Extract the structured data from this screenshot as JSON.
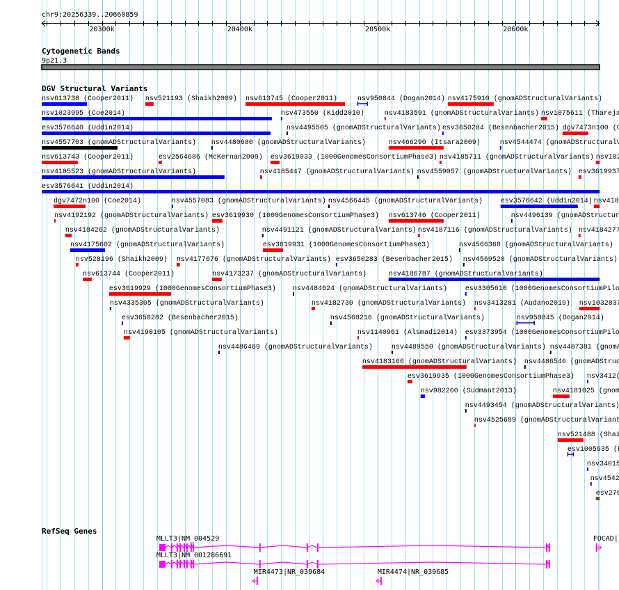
{
  "region": {
    "label": "chr9:20256339..20660859",
    "chrom": "chr9",
    "start": 20256339,
    "end": 20660859
  },
  "ruler": {
    "minor_tick_kb": 10,
    "major_ticks": [
      {
        "kb": 20300,
        "label": "20300k"
      },
      {
        "kb": 20400,
        "label": "20400k"
      },
      {
        "kb": 20500,
        "label": "20500k"
      },
      {
        "kb": 20600,
        "label": "20600k"
      }
    ]
  },
  "grid": {
    "interval_kb": 10,
    "color": "#a6e3ee",
    "major_color": "#88c4ec"
  },
  "colors": {
    "blue": "#0000ff",
    "red": "#ff0000",
    "black": "#000000",
    "brown": "#8b4513",
    "gene": "#ff00ff",
    "band": "#808080"
  },
  "tracks": {
    "cytoband": {
      "title": "Cytogenetic Bands",
      "band_label": "9p21.3"
    },
    "dgv": {
      "title": "DGV Structural Variants",
      "rows": [
        [
          {
            "l": "nsv613738 (Cooper2011)",
            "s": 20256.3,
            "e": 20289.1,
            "c": "blue"
          },
          {
            "l": "nsv521193 (Shaikh2009)",
            "s": 20331.4,
            "e": 20337.5,
            "c": "red"
          },
          {
            "l": "nsv613745 (Cooper2011)",
            "s": 20404.1,
            "e": 20476.2,
            "c": "red"
          },
          {
            "l": "nsv950844 (Dogan2014)",
            "s": 20485.3,
            "e": 20492.8,
            "c": "blue",
            "t": "interval"
          },
          {
            "l": "nsv4175910 (gnomADStructuralVariants)",
            "s": 20550.8,
            "e": 20584.1,
            "c": "red"
          }
        ],
        [
          {
            "l": "nsv1023995 (Coe2014)",
            "s": 20256.3,
            "e": 20423.2,
            "c": "blue"
          },
          {
            "l": "nsv473550 (Kidd2010)",
            "s": 20429.8,
            "e": 20430.8,
            "c": "blue"
          },
          {
            "l": "nsv4183591 (gnomADStructuralVariants)",
            "s": 20504.9,
            "e": 20505.9,
            "c": "red"
          },
          {
            "l": "nsv1075611 (Thareja",
            "s": 20618.4,
            "e": 20622.9,
            "c": "red"
          }
        ],
        [
          {
            "l": "esv3576640 (Uddin2014)",
            "s": 20256.3,
            "e": 20422.2,
            "c": "blue"
          },
          {
            "l": "nsv4495505 (gnomADStructuralVariants)",
            "s": 20433.8,
            "e": 20434.3,
            "c": "black"
          },
          {
            "l": "esv3650284 (Besenbacher2015)",
            "s": 20546.8,
            "e": 20547.8,
            "c": "blue"
          },
          {
            "l": "dgv7473n100 (Coe2014)",
            "s": 20634.0,
            "e": 20652.7,
            "c": "red"
          }
        ],
        [
          {
            "l": "nsv4557703 (gnomADStructuralVariants)",
            "s": 20256.3,
            "e": 20311.3,
            "c": "black"
          },
          {
            "l": "nsv4480680 (gnomADStructuralVariants)",
            "s": 20379.3,
            "e": 20380.3,
            "c": "black"
          },
          {
            "l": "nsv466290 (Itsara2009)",
            "s": 20507.9,
            "e": 20547.8,
            "c": "red"
          },
          {
            "l": "nsv4544474 (gnomADStructuralVariants)",
            "s": 20588.6,
            "e": 20589.6,
            "c": "blue"
          }
        ],
        [
          {
            "l": "nsv613743 (Cooper2011)",
            "s": 20256.3,
            "e": 20282.5,
            "c": "red"
          },
          {
            "l": "esv2564686 (McKernan2009)",
            "s": 20341.0,
            "e": 20343.5,
            "c": "red"
          },
          {
            "l": "esv3619933 (1000GenomesConsortiumPhase3)",
            "s": 20422.2,
            "e": 20428.8,
            "c": "red"
          },
          {
            "l": "nsv4185711 (gnomADStructuralVariants)",
            "s": 20544.8,
            "e": 20546.3,
            "c": "red"
          },
          {
            "l": "nsv102",
            "s": 20658.2,
            "e": 20660.9,
            "c": "red"
          }
        ],
        [
          {
            "l": "nsv4185523 (gnomADStructuralVariants)",
            "s": 20256.3,
            "e": 20388.9,
            "c": "blue"
          },
          {
            "l": "nsv4185447 (gnomADStructuralVariants)",
            "s": 20414.6,
            "e": 20416.1,
            "c": "red"
          },
          {
            "l": "nsv4559057 (gnomADStructuralVariants)",
            "s": 20528.6,
            "e": 20529.6,
            "c": "black"
          },
          {
            "l": "esv3619937",
            "s": 20645.6,
            "e": 20647.6,
            "c": "red"
          }
        ],
        [
          {
            "l": "esv3576641 (Uddin2014)",
            "s": 20256.3,
            "e": 20660.9,
            "c": "blue"
          }
        ],
        [
          {
            "l": "dgv7472n100 (Coe2014)",
            "s": 20264.9,
            "e": 20288.1,
            "c": "red"
          },
          {
            "l": "nsv4557083 (gnomADStructuralVariants)",
            "s": 20350.6,
            "e": 20351.6,
            "c": "blue"
          },
          {
            "l": "nsv4566445 (gnomADStructuralVariants)",
            "s": 20464.1,
            "e": 20465.1,
            "c": "black"
          },
          {
            "l": "esv3576642 (Uddin2014)",
            "s": 20589.1,
            "e": 20645.1,
            "c": "blue"
          },
          {
            "l": "nsv418",
            "s": 20656.7,
            "e": 20660.9,
            "c": "red"
          }
        ],
        [
          {
            "l": "nsv4192192 (gnomADStructuralVariants)",
            "s": 20265.4,
            "e": 20266.4,
            "c": "red"
          },
          {
            "l": "esv3619930 (1000GenomesConsortiumPhase3)",
            "s": 20379.9,
            "e": 20387.4,
            "c": "red"
          },
          {
            "l": "nsv613746 (Cooper2011)",
            "s": 20507.9,
            "e": 20547.8,
            "c": "red"
          },
          {
            "l": "nsv4496139 (gnomADStructuralVariants)",
            "s": 20596.7,
            "e": 20597.7,
            "c": "black"
          }
        ],
        [
          {
            "l": "nsv4184262 (gnomADStructuralVariants)",
            "s": 20273.4,
            "e": 20278.0,
            "c": "red"
          },
          {
            "l": "nsv4491121 (gnomADStructuralVariants)",
            "s": 20416.1,
            "e": 20417.1,
            "c": "black"
          },
          {
            "l": "nsv4187116 (gnomADStructuralVariants)",
            "s": 20529.1,
            "e": 20530.6,
            "c": "red"
          },
          {
            "l": "nsv4184277",
            "s": 20645.6,
            "e": 20647.1,
            "c": "red"
          }
        ],
        [
          {
            "l": "nsv4175602 (gnomADStructuralVariants)",
            "s": 20277.0,
            "e": 20302.2,
            "c": "blue"
          },
          {
            "l": "esv3619931 (1000GenomesConsortiumPhase3)",
            "s": 20416.7,
            "e": 20431.3,
            "c": "red"
          },
          {
            "l": "nsv4566368 (gnomADStructuralVariants)",
            "s": 20558.9,
            "e": 20559.9,
            "c": "black"
          }
        ],
        [
          {
            "l": "nsv528196 (Shaikh2009)",
            "s": 20281.0,
            "e": 20283.0,
            "c": "red"
          },
          {
            "l": "nsv4177676 (gnomADStructuralVariants)",
            "s": 20354.1,
            "e": 20356.6,
            "c": "red"
          },
          {
            "l": "esv3650283 (Besenbacher2015)",
            "s": 20469.6,
            "e": 20470.6,
            "c": "blue"
          },
          {
            "l": "nsv4569520 (gnomADStructuralVariants)",
            "s": 20561.9,
            "e": 20562.9,
            "c": "black"
          }
        ],
        [
          {
            "l": "nsv613744 (Cooper2011)",
            "s": 20286.1,
            "e": 20292.6,
            "c": "red"
          },
          {
            "l": "nsv4173237 (gnomADStructuralVariants)",
            "s": 20379.9,
            "e": 20386.9,
            "c": "red"
          },
          {
            "l": "nsv4186787 (gnomADStructuralVariants)",
            "s": 20507.9,
            "e": 20660.9,
            "c": "blue"
          }
        ],
        [
          {
            "l": "esv3619929 (1000GenomesConsortiumPhase3)",
            "s": 20305.2,
            "e": 20350.1,
            "c": "red"
          },
          {
            "l": "nsv4484624 (gnomADStructuralVariants)",
            "s": 20438.4,
            "e": 20439.4,
            "c": "black"
          },
          {
            "l": "esv3305610 (1000GenomesConsortiumPilo",
            "s": 20563.4,
            "e": 20564.4,
            "c": "blue"
          }
        ],
        [
          {
            "l": "nsv4335305 (gnomADStructuralVariants)",
            "s": 20305.7,
            "e": 20306.7,
            "c": "black"
          },
          {
            "l": "nsv4182730 (gnomADStructuralVariants)",
            "s": 20452.0,
            "e": 20454.5,
            "c": "red"
          },
          {
            "l": "nsv3413281 (Audano2019)",
            "s": 20570.0,
            "e": 20571.0,
            "c": "red"
          },
          {
            "l": "nsv1032837",
            "s": 20646.1,
            "e": 20660.9,
            "c": "red"
          }
        ],
        [
          {
            "l": "esv3650282 (Besenbacher2015)",
            "s": 20314.3,
            "e": 20315.3,
            "c": "blue"
          },
          {
            "l": "nsv4568216 (gnomADStructuralVariants)",
            "s": 20465.6,
            "e": 20466.6,
            "c": "black"
          },
          {
            "l": "nsv950845 (Dogan2014)",
            "s": 20600.7,
            "e": 20613.8,
            "c": "blue",
            "t": "interval"
          }
        ],
        [
          {
            "l": "nsv4190105 (gnomADStructuralVariants)",
            "s": 20315.8,
            "e": 20320.3,
            "c": "red"
          },
          {
            "l": "nsv1140961 (Alsmadi2014)",
            "s": 20485.3,
            "e": 20486.3,
            "c": "red"
          },
          {
            "l": "esv3373954 (1000GenomesConsortiumPilo",
            "s": 20563.4,
            "e": 20564.4,
            "c": "blue"
          }
        ],
        [
          {
            "l": "nsv4486469 (gnomADStructuralVariants)",
            "s": 20384.4,
            "e": 20385.4,
            "c": "black"
          },
          {
            "l": "nsv4489550 (gnomADStructuralVariants)",
            "s": 20510.0,
            "e": 20511.0,
            "c": "black"
          },
          {
            "l": "nsv4487381 (gnomA",
            "s": 20624.9,
            "e": 20625.9,
            "c": "black"
          }
        ],
        [
          {
            "l": "nsv4183166 (gnomADStructuralVariants)",
            "s": 20488.8,
            "e": 20564.4,
            "c": "red"
          },
          {
            "l": "nsv4486546 (gnomADStruc",
            "s": 20606.3,
            "e": 20607.3,
            "c": "black"
          }
        ],
        [
          {
            "l": "esv3619935 (1000GenomesConsortiumPhase3)",
            "s": 20521.6,
            "e": 20525.1,
            "c": "red"
          },
          {
            "l": "nsv3412(",
            "s": 20651.7,
            "e": 20652.7,
            "c": "blue"
          }
        ],
        [
          {
            "l": "nsv982200 (Sudmant2013)",
            "s": 20531.1,
            "e": 20534.2,
            "c": "blue"
          },
          {
            "l": "nsv4181025 (gnom",
            "s": 20627.0,
            "e": 20639.1,
            "c": "red"
          }
        ],
        [
          {
            "l": "nsv4493454 (gnomADStructuralVariants)",
            "s": 20563.4,
            "e": 20564.4,
            "c": "black"
          }
        ],
        [
          {
            "l": "nsv4525689 (gnomADStructuralVariant",
            "s": 20570.0,
            "e": 20571.0,
            "c": "red"
          }
        ],
        [
          {
            "l": "nsv521488 (Shai",
            "s": 20630.5,
            "e": 20649.1,
            "c": "red"
          }
        ],
        [
          {
            "l": "esv1005935 (F",
            "s": 20637.6,
            "e": 20642.1,
            "c": "blue",
            "t": "interval"
          }
        ],
        [
          {
            "l": "nsv34015",
            "s": 20651.7,
            "e": 20652.7,
            "c": "blue"
          }
        ],
        [
          {
            "l": "nsv4542",
            "s": 20654.2,
            "e": 20655.2,
            "c": "blue"
          }
        ],
        [
          {
            "l": "esv276",
            "s": 20658.2,
            "e": 20660.9,
            "c": "brown"
          }
        ]
      ]
    },
    "refseq": {
      "title": "RefSeq Genes",
      "genes": [
        {
          "l": "MLLT3|NM_004529",
          "strand": "-",
          "exons": [
            [
              20341.5,
              20346.1
            ],
            [
              20350.1,
              20350.6
            ],
            [
              20354.1,
              20354.6
            ],
            [
              20356.2,
              20356.7
            ],
            [
              20359.2,
              20359.7
            ],
            [
              20361.2,
              20361.7
            ],
            [
              20364.2,
              20364.7
            ],
            [
              20365.7,
              20366.2
            ],
            [
              20414.1,
              20414.6
            ],
            [
              20448.4,
              20448.9
            ],
            [
              20456.0,
              20456.5
            ],
            [
              20621.9,
              20622.4
            ],
            [
              20623.9,
              20624.4
            ]
          ]
        },
        {
          "l": "MLLT3|NM_001286691",
          "strand": "-",
          "exons": [
            [
              20341.5,
              20346.1
            ],
            [
              20350.1,
              20350.6
            ],
            [
              20354.1,
              20354.6
            ],
            [
              20356.2,
              20356.7
            ],
            [
              20359.2,
              20359.7
            ],
            [
              20361.2,
              20361.7
            ],
            [
              20364.2,
              20364.7
            ],
            [
              20365.7,
              20366.2
            ],
            [
              20414.1,
              20414.6
            ],
            [
              20448.4,
              20448.9
            ],
            [
              20456.0,
              20456.5
            ],
            [
              20621.9,
              20622.4
            ],
            [
              20623.9,
              20624.4
            ]
          ]
        },
        {
          "l": "MIR4473|NR_039684",
          "strand": "-",
          "exons": [
            [
              20412.1,
              20412.6
            ]
          ]
        },
        {
          "l": "MIR4474|NR_039685",
          "strand": "-",
          "exons": [
            [
              20501.9,
              20502.4
            ]
          ]
        },
        {
          "l": "FOCAD|",
          "strand": "+",
          "exons": [
            [
              20658.2,
              20658.7
            ]
          ]
        }
      ]
    }
  }
}
